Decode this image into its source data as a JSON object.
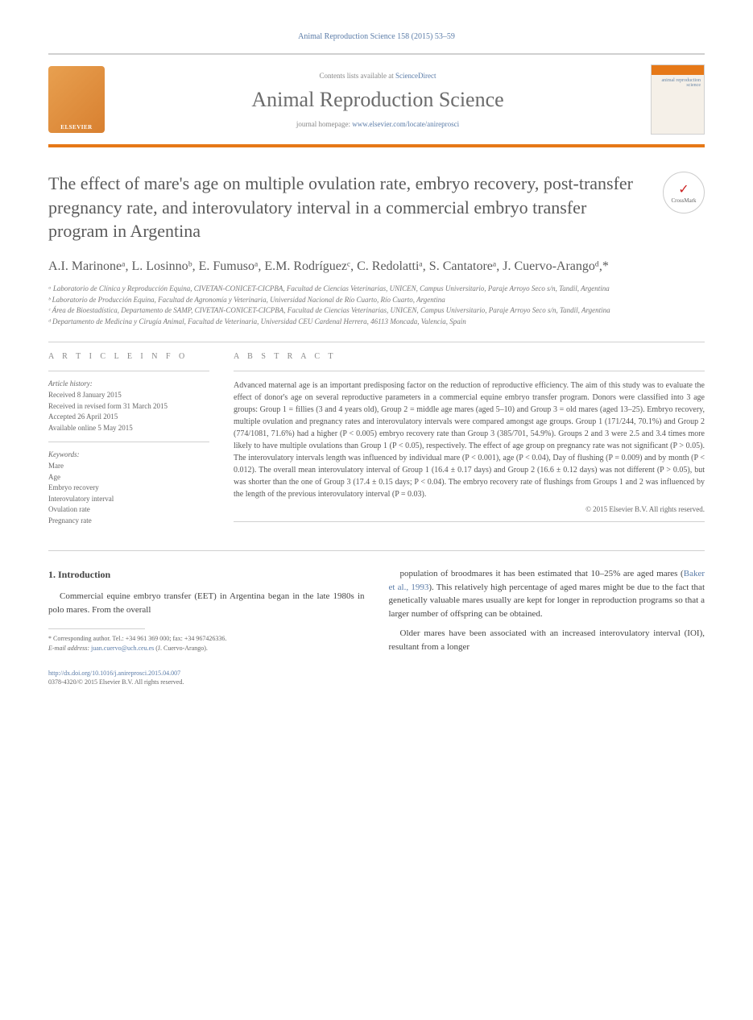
{
  "header": {
    "citation": "Animal Reproduction Science 158 (2015) 53–59",
    "contents": "Contents lists available at ",
    "sciencedirect": "ScienceDirect",
    "journalName": "Animal Reproduction Science",
    "homepageLabel": "journal homepage: ",
    "homepageUrl": "www.elsevier.com/locate/anireprosci",
    "elsevierLabel": "ELSEVIER",
    "coverText": "animal\nreproduction\nscience",
    "crossmark": "CrossMark"
  },
  "article": {
    "title": "The effect of mare's age on multiple ovulation rate, embryo recovery, post-transfer pregnancy rate, and interovulatory interval in a commercial embryo transfer program in Argentina",
    "authors": "A.I. Marinoneᵃ, L. Losinnoᵇ, E. Fumusoᵃ, E.M. Rodríguezᶜ, C. Redolattiᵃ, S. Cantatoreᵃ, J. Cuervo-Arangoᵈ,*",
    "affiliations": [
      "ᵃ Laboratorio de Clínica y Reproducción Equina, CIVETAN-CONICET-CICPBA, Facultad de Ciencias Veterinarias, UNICEN, Campus Universitario, Paraje Arroyo Seco s/n, Tandil, Argentina",
      "ᵇ Laboratorio de Producción Equina, Facultad de Agronomía y Veterinaria, Universidad Nacional de Río Cuarto, Río Cuarto, Argentina",
      "ᶜ Área de Bioestadística, Departamento de SAMP, CIVETAN-CONICET-CICPBA, Facultad de Ciencias Veterinarias, UNICEN, Campus Universitario, Paraje Arroyo Seco s/n, Tandil, Argentina",
      "ᵈ Departamento de Medicina y Cirugía Animal, Facultad de Veterinaria, Universidad CEU Cardenal Herrera, 46113 Moncada, Valencia, Spain"
    ]
  },
  "info": {
    "header": "A R T I C L E   I N F O",
    "historyLabel": "Article history:",
    "history": [
      "Received 8 January 2015",
      "Received in revised form 31 March 2015",
      "Accepted 26 April 2015",
      "Available online 5 May 2015"
    ],
    "keywordsLabel": "Keywords:",
    "keywords": [
      "Mare",
      "Age",
      "Embryo recovery",
      "Interovulatory interval",
      "Ovulation rate",
      "Pregnancy rate"
    ]
  },
  "abstract": {
    "header": "A B S T R A C T",
    "text": "Advanced maternal age is an important predisposing factor on the reduction of reproductive efficiency. The aim of this study was to evaluate the effect of donor's age on several reproductive parameters in a commercial equine embryo transfer program. Donors were classified into 3 age groups: Group 1 = fillies (3 and 4 years old), Group 2 = middle age mares (aged 5–10) and Group 3 = old mares (aged 13–25). Embryo recovery, multiple ovulation and pregnancy rates and interovulatory intervals were compared amongst age groups. Group 1 (171/244, 70.1%) and Group 2 (774/1081, 71.6%) had a higher (P < 0.005) embryo recovery rate than Group 3 (385/701, 54.9%). Groups 2 and 3 were 2.5 and 3.4 times more likely to have multiple ovulations than Group 1 (P < 0.05), respectively. The effect of age group on pregnancy rate was not significant (P > 0.05). The interovulatory intervals length was influenced by individual mare (P < 0.001), age (P < 0.04), Day of flushing (P = 0.009) and by month (P < 0.012). The overall mean interovulatory interval of Group 1 (16.4 ± 0.17 days) and Group 2 (16.6 ± 0.12 days) was not different (P > 0.05), but was shorter than the one of Group 3 (17.4 ± 0.15 days; P < 0.04). The embryo recovery rate of flushings from Groups 1 and 2 was influenced by the length of the previous interovulatory interval (P = 0.03).",
    "copyright": "© 2015 Elsevier B.V. All rights reserved."
  },
  "body": {
    "sectionHeading": "1. Introduction",
    "col1p1": "Commercial equine embryo transfer (EET) in Argentina began in the late 1980s in polo mares. From the overall",
    "col2p1": "population of broodmares it has been estimated that 10–25% are aged mares (",
    "col2ref": "Baker et al., 1993",
    "col2p1b": "). This relatively high percentage of aged mares might be due to the fact that genetically valuable mares usually are kept for longer in reproduction programs so that a larger number of offspring can be obtained.",
    "col2p2": "Older mares have been associated with an increased interovulatory interval (IOI), resultant from a longer"
  },
  "footer": {
    "correspondingLabel": "* Corresponding author. Tel.: +34 961 369 000; fax: +34 967426336.",
    "emailLabel": "E-mail address: ",
    "email": "juan.cuervo@uch.ceu.es",
    "emailPerson": " (J. Cuervo-Arango).",
    "doi": "http://dx.doi.org/10.1016/j.anireprosci.2015.04.007",
    "issn": "0378-4320/© 2015 Elsevier B.V. All rights reserved."
  },
  "colors": {
    "accent": "#e67817",
    "link": "#5b7ca8",
    "text": "#5a5a5a"
  }
}
